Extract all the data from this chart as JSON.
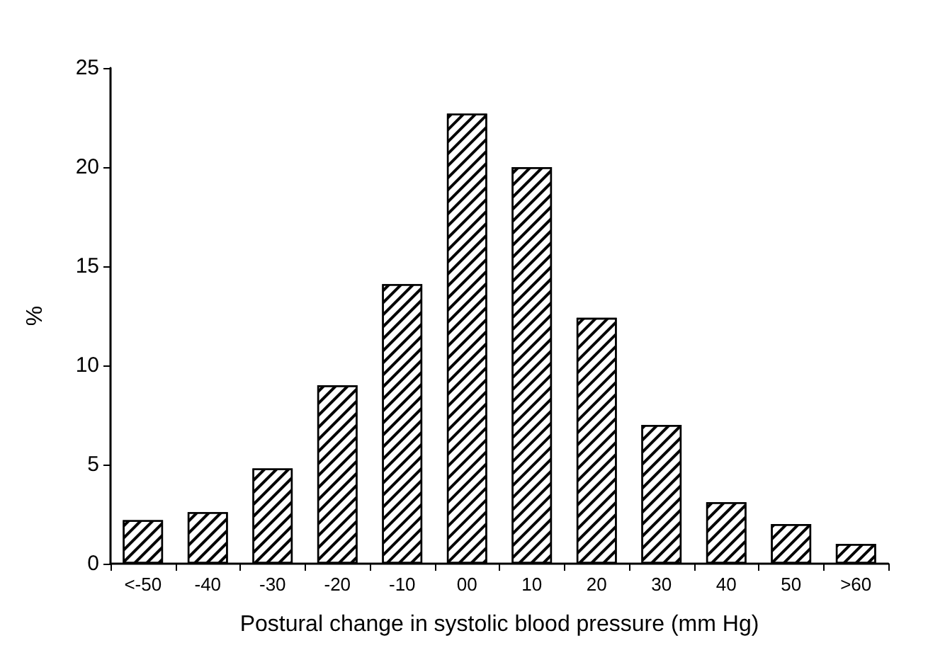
{
  "chart_data": {
    "type": "bar",
    "xlabel": "Postural change in systolic blood pressure (mm Hg)",
    "ylabel": "%",
    "categories": [
      "<-50",
      "-40",
      "-30",
      "-20",
      "-10",
      "00",
      "10",
      "20",
      "30",
      "40",
      "50",
      ">60"
    ],
    "values": [
      2.2,
      2.6,
      4.8,
      9.0,
      14.1,
      22.7,
      20.0,
      12.4,
      7.0,
      3.1,
      2.0,
      1.0
    ],
    "color": "#000000",
    "ylim": [
      0,
      25
    ],
    "yticks": [
      0,
      5,
      10,
      15,
      20,
      25
    ],
    "grid": false
  }
}
